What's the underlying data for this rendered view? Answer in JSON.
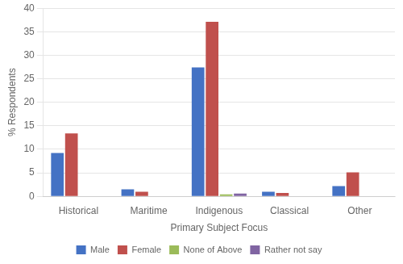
{
  "chart_data": {
    "type": "bar",
    "categories": [
      "Historical",
      "Maritime",
      "Indigenous",
      "Classical",
      "Other"
    ],
    "series": [
      {
        "name": "Male",
        "color": "#4472C4",
        "values": [
          9.2,
          1.5,
          27.4,
          1.0,
          2.2
        ]
      },
      {
        "name": "Female",
        "color": "#C0504D",
        "values": [
          13.4,
          1.0,
          37.1,
          0.7,
          5.1
        ]
      },
      {
        "name": "None of Above",
        "color": "#9BBB59",
        "values": [
          0.0,
          0.0,
          0.4,
          0.0,
          0.0
        ]
      },
      {
        "name": "Rather not say",
        "color": "#8064A2",
        "values": [
          0.0,
          0.0,
          0.6,
          0.0,
          0.0
        ]
      }
    ],
    "ylabel": "% Respondents",
    "xlabel": "Primary Subject Focus",
    "ylim": [
      0,
      40
    ],
    "yticks": [
      0,
      5,
      10,
      15,
      20,
      25,
      30,
      35,
      40
    ],
    "grid": true,
    "legend": "bottom"
  }
}
